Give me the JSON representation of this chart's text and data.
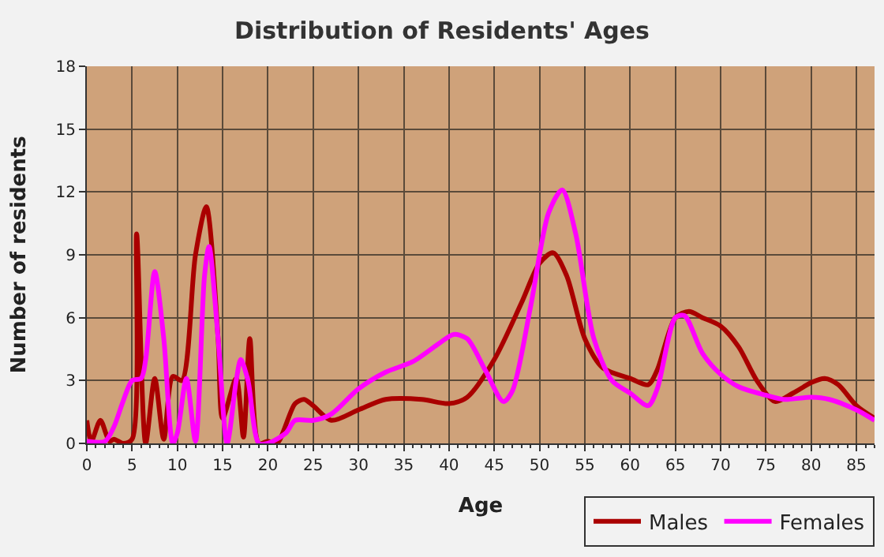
{
  "chart_data": {
    "type": "line",
    "title": "Distribution of Residents' Ages",
    "xlabel": "Age",
    "ylabel": "Number of residents",
    "xlim": [
      0,
      87
    ],
    "xticks": [
      0,
      5,
      10,
      15,
      20,
      25,
      30,
      35,
      40,
      45,
      50,
      55,
      60,
      65,
      70,
      75,
      80,
      85
    ],
    "ylim": [
      0,
      18
    ],
    "yticks": [
      0,
      3,
      6,
      9,
      12,
      15,
      18
    ],
    "grid": true,
    "legend": "bottom right",
    "series": [
      {
        "name": "Males",
        "color": "#aa0000",
        "x": [
          0,
          0.5,
          1.5,
          2.5,
          3,
          4,
          5,
          5.5,
          6.5,
          7.5,
          8.5,
          9.5,
          10.5,
          12,
          13.2,
          14.5,
          15,
          16.5,
          17.3,
          18,
          19,
          20,
          21,
          23,
          24,
          25,
          27,
          30,
          33,
          37,
          40,
          42,
          45,
          48,
          50,
          51.5,
          53,
          55,
          57,
          60,
          62,
          63,
          65,
          66.5,
          68,
          70,
          72,
          74,
          76,
          78,
          80,
          81.5,
          83,
          85,
          87
        ],
        "values": [
          1.1,
          0.1,
          1.1,
          0.1,
          0.2,
          0,
          0.2,
          10,
          0,
          3.1,
          0.2,
          3.2,
          3,
          9,
          11.3,
          5,
          1.2,
          3.1,
          0.3,
          5,
          0,
          0.1,
          0,
          1.9,
          2.1,
          1.8,
          1.1,
          1.6,
          2.1,
          2.1,
          1.9,
          2.2,
          4,
          6.7,
          8.6,
          9.1,
          8,
          5,
          3.6,
          3.1,
          2.8,
          3.5,
          6,
          6.3,
          6,
          5.6,
          4.6,
          3,
          2,
          2.4,
          2.9,
          3.1,
          2.8,
          1.8,
          1.2
        ]
      },
      {
        "name": "Females",
        "color": "#ff00ff",
        "x": [
          0,
          2,
          3,
          4,
          5,
          6,
          6.5,
          7.5,
          8.5,
          9.5,
          10,
          11,
          12,
          13,
          13.5,
          14.5,
          15.5,
          16.5,
          17,
          17.8,
          19,
          20,
          22,
          23,
          25,
          27,
          30,
          33,
          36,
          39,
          40.5,
          42,
          44,
          46,
          47,
          49,
          51,
          52.5,
          54,
          56,
          58,
          60,
          62,
          63,
          65,
          66,
          68,
          70,
          72,
          75,
          77,
          80,
          82,
          85,
          87
        ],
        "values": [
          0.1,
          0.1,
          0.8,
          2,
          3,
          3.1,
          4,
          8.2,
          5,
          0,
          0.5,
          3.1,
          0.1,
          8,
          9.4,
          5,
          0,
          3,
          4,
          3,
          0,
          0,
          0.5,
          1.1,
          1.1,
          1.4,
          2.6,
          3.4,
          3.9,
          4.8,
          5.2,
          5,
          3.5,
          2,
          2.5,
          6.5,
          11,
          12.1,
          10,
          5,
          3,
          2.4,
          1.8,
          2.6,
          6,
          6.1,
          4.3,
          3.3,
          2.7,
          2.3,
          2.1,
          2.2,
          2.1,
          1.6,
          1.1
        ]
      }
    ]
  }
}
